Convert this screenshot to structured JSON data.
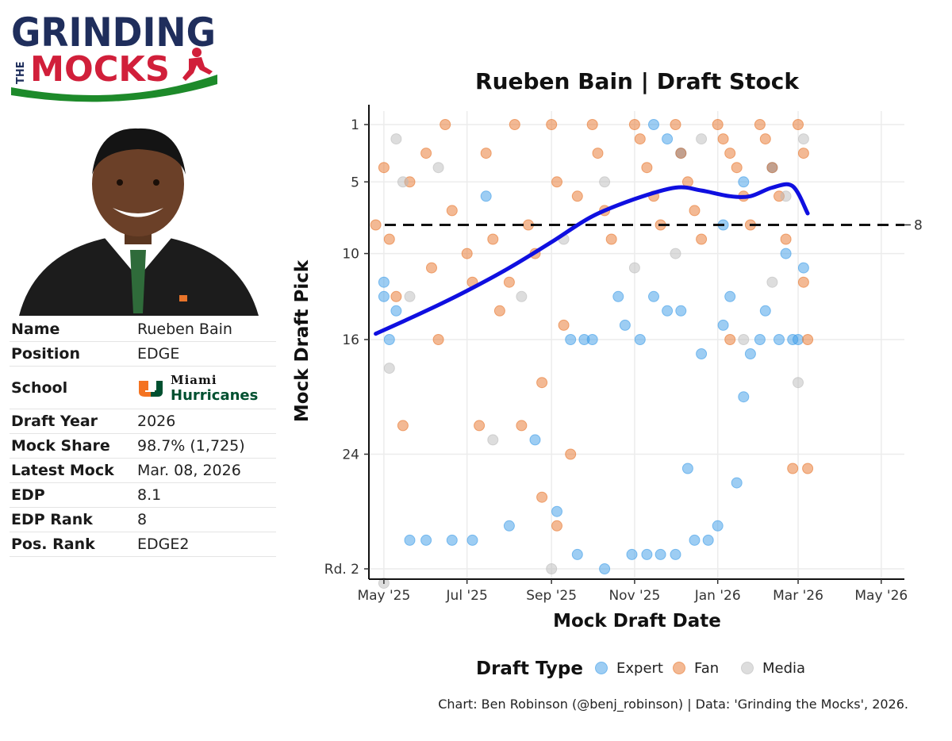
{
  "logo": {
    "line1": "GRINDING",
    "line2": "THE",
    "line3": "MOCKS"
  },
  "profile": {
    "rows": [
      {
        "key": "Name",
        "value": "Rueben Bain"
      },
      {
        "key": "Position",
        "value": "EDGE"
      },
      {
        "key": "School",
        "value": ""
      },
      {
        "key": "Draft Year",
        "value": "2026"
      },
      {
        "key": "Mock Share",
        "value": "98.7% (1,725)"
      },
      {
        "key": "Latest Mock",
        "value": "Mar. 08, 2026"
      },
      {
        "key": "EDP",
        "value": "8.1"
      },
      {
        "key": "EDP Rank",
        "value": "8"
      },
      {
        "key": "Pos. Rank",
        "value": "EDGE2"
      }
    ],
    "school_logo_top": "Miami",
    "school_logo_bottom": "Hurricanes"
  },
  "colors": {
    "expert": "#3b9be8",
    "fan": "#e8742a",
    "media": "#bcbcbc",
    "trend": "#0f0fe0",
    "navy": "#1f2e5c",
    "red": "#d11f3a",
    "green": "#1d8a2a"
  },
  "chart_data": {
    "type": "scatter",
    "title": "Rueben Bain | Draft Stock",
    "xlabel": "Mock Draft Date",
    "ylabel": "Mock Draft Pick",
    "x_ticks": [
      "May '25",
      "Jul '25",
      "Sep '25",
      "Nov '25",
      "Jan '26",
      "Mar '26",
      "May '26"
    ],
    "y_ticks": [
      {
        "value": 1,
        "label": "1"
      },
      {
        "value": 5,
        "label": "5"
      },
      {
        "value": 10,
        "label": "10"
      },
      {
        "value": 16,
        "label": "16"
      },
      {
        "value": 24,
        "label": "24"
      },
      {
        "value": 32,
        "label": "Rd. 2"
      }
    ],
    "reference_line": {
      "value": 8,
      "label": "8"
    },
    "legend": {
      "title": "Draft Type",
      "entries": [
        "Expert",
        "Fan",
        "Media"
      ]
    },
    "caption": "Chart: Ben Robinson (@benj_robinson) | Data: 'Grinding the Mocks', 2026.",
    "trend": [
      {
        "x": "Apr 25 '25",
        "y": 15.6
      },
      {
        "x": "Jun 01 '25",
        "y": 14.0
      },
      {
        "x": "Jul 01 '25",
        "y": 12.6
      },
      {
        "x": "Aug 01 '25",
        "y": 11.0
      },
      {
        "x": "Sep 01 '25",
        "y": 9.2
      },
      {
        "x": "Oct 01 '25",
        "y": 7.4
      },
      {
        "x": "Nov 01 '25",
        "y": 6.2
      },
      {
        "x": "Dec 01 '25",
        "y": 5.4
      },
      {
        "x": "Dec 20 '25",
        "y": 5.6
      },
      {
        "x": "Jan 10 '26",
        "y": 6.0
      },
      {
        "x": "Jan 25 '26",
        "y": 6.0
      },
      {
        "x": "Feb 10 '26",
        "y": 5.4
      },
      {
        "x": "Feb 25 '26",
        "y": 5.3
      },
      {
        "x": "Mar 08 '26",
        "y": 7.2
      }
    ],
    "series": [
      {
        "name": "Expert",
        "points": [
          [
            "May 01 '25",
            12
          ],
          [
            "May 01 '25",
            13
          ],
          [
            "May 05 '25",
            16
          ],
          [
            "May 10 '25",
            14
          ],
          [
            "May 20 '25",
            30
          ],
          [
            "Jun 01 '25",
            30
          ],
          [
            "Jun 20 '25",
            30
          ],
          [
            "Jul 05 '25",
            30
          ],
          [
            "Jul 15 '25",
            6
          ],
          [
            "Aug 01 '25",
            29
          ],
          [
            "Aug 20 '25",
            23
          ],
          [
            "Sep 05 '25",
            28
          ],
          [
            "Sep 15 '25",
            16
          ],
          [
            "Sep 20 '25",
            31
          ],
          [
            "Sep 25 '25",
            16
          ],
          [
            "Oct 01 '25",
            16
          ],
          [
            "Oct 10 '25",
            32
          ],
          [
            "Oct 20 '25",
            13
          ],
          [
            "Oct 25 '25",
            15
          ],
          [
            "Oct 30 '25",
            31
          ],
          [
            "Nov 05 '25",
            16
          ],
          [
            "Nov 10 '25",
            31
          ],
          [
            "Nov 15 '25",
            13
          ],
          [
            "Nov 20 '25",
            31
          ],
          [
            "Nov 25 '25",
            14
          ],
          [
            "Dec 01 '25",
            31
          ],
          [
            "Dec 05 '25",
            14
          ],
          [
            "Dec 10 '25",
            25
          ],
          [
            "Dec 15 '25",
            30
          ],
          [
            "Dec 20 '25",
            17
          ],
          [
            "Dec 25 '25",
            30
          ],
          [
            "Jan 01 '26",
            29
          ],
          [
            "Jan 05 '26",
            15
          ],
          [
            "Jan 10 '26",
            13
          ],
          [
            "Jan 15 '26",
            26
          ],
          [
            "Jan 20 '26",
            20
          ],
          [
            "Jan 25 '26",
            17
          ],
          [
            "Feb 01 '26",
            16
          ],
          [
            "Feb 05 '26",
            14
          ],
          [
            "Feb 15 '26",
            16
          ],
          [
            "Feb 25 '26",
            16
          ],
          [
            "Mar 01 '26",
            16
          ],
          [
            "Nov 15 '25",
            1
          ],
          [
            "Nov 25 '25",
            2
          ],
          [
            "Dec 05 '25",
            3
          ],
          [
            "Jan 20 '26",
            5
          ],
          [
            "Feb 10 '26",
            4
          ],
          [
            "Jan 05 '26",
            8
          ],
          [
            "Feb 20 '26",
            10
          ],
          [
            "Mar 05 '26",
            11
          ]
        ]
      },
      {
        "name": "Fan",
        "points": [
          [
            "Apr 25 '25",
            8
          ],
          [
            "May 01 '25",
            4
          ],
          [
            "May 05 '25",
            9
          ],
          [
            "May 10 '25",
            13
          ],
          [
            "May 15 '25",
            22
          ],
          [
            "May 20 '25",
            5
          ],
          [
            "Jun 01 '25",
            3
          ],
          [
            "Jun 05 '25",
            11
          ],
          [
            "Jun 10 '25",
            16
          ],
          [
            "Jun 15 '25",
            1
          ],
          [
            "Jun 20 '25",
            7
          ],
          [
            "Jul 01 '25",
            10
          ],
          [
            "Jul 05 '25",
            12
          ],
          [
            "Jul 10 '25",
            22
          ],
          [
            "Jul 15 '25",
            3
          ],
          [
            "Jul 20 '25",
            9
          ],
          [
            "Jul 25 '25",
            14
          ],
          [
            "Aug 01 '25",
            12
          ],
          [
            "Aug 05 '25",
            1
          ],
          [
            "Aug 10 '25",
            22
          ],
          [
            "Aug 15 '25",
            8
          ],
          [
            "Aug 20 '25",
            10
          ],
          [
            "Aug 25 '25",
            19
          ],
          [
            "Sep 01 '25",
            1
          ],
          [
            "Sep 05 '25",
            5
          ],
          [
            "Sep 10 '25",
            15
          ],
          [
            "Sep 15 '25",
            24
          ],
          [
            "Sep 20 '25",
            6
          ],
          [
            "Oct 01 '25",
            1
          ],
          [
            "Oct 05 '25",
            3
          ],
          [
            "Oct 10 '25",
            7
          ],
          [
            "Oct 15 '25",
            9
          ],
          [
            "Nov 01 '25",
            1
          ],
          [
            "Nov 05 '25",
            2
          ],
          [
            "Nov 10 '25",
            4
          ],
          [
            "Nov 15 '25",
            6
          ],
          [
            "Nov 20 '25",
            8
          ],
          [
            "Dec 01 '25",
            1
          ],
          [
            "Dec 05 '25",
            3
          ],
          [
            "Dec 10 '25",
            5
          ],
          [
            "Dec 15 '25",
            7
          ],
          [
            "Dec 20 '25",
            9
          ],
          [
            "Jan 01 '26",
            1
          ],
          [
            "Jan 05 '26",
            2
          ],
          [
            "Jan 10 '26",
            3
          ],
          [
            "Jan 15 '26",
            4
          ],
          [
            "Jan 20 '26",
            6
          ],
          [
            "Jan 25 '26",
            8
          ],
          [
            "Feb 01 '26",
            1
          ],
          [
            "Feb 05 '26",
            2
          ],
          [
            "Feb 10 '26",
            4
          ],
          [
            "Feb 15 '26",
            6
          ],
          [
            "Feb 20 '26",
            9
          ],
          [
            "Feb 25 '26",
            25
          ],
          [
            "Mar 01 '26",
            1
          ],
          [
            "Mar 05 '26",
            3
          ],
          [
            "Mar 05 '26",
            12
          ],
          [
            "Mar 08 '26",
            25
          ],
          [
            "Mar 08 '26",
            16
          ],
          [
            "Sep 05 '25",
            29
          ],
          [
            "Aug 25 '25",
            27
          ],
          [
            "Jan 10 '26",
            16
          ]
        ]
      },
      {
        "name": "Media",
        "points": [
          [
            "May 01 '25",
            33
          ],
          [
            "May 05 '25",
            18
          ],
          [
            "May 10 '25",
            2
          ],
          [
            "May 15 '25",
            5
          ],
          [
            "May 20 '25",
            13
          ],
          [
            "Jun 10 '25",
            4
          ],
          [
            "Jul 20 '25",
            23
          ],
          [
            "Aug 10 '25",
            13
          ],
          [
            "Sep 01 '25",
            32
          ],
          [
            "Sep 10 '25",
            9
          ],
          [
            "Oct 10 '25",
            5
          ],
          [
            "Nov 01 '25",
            11
          ],
          [
            "Dec 01 '25",
            10
          ],
          [
            "Dec 20 '25",
            2
          ],
          [
            "Jan 20 '26",
            16
          ],
          [
            "Feb 10 '26",
            12
          ],
          [
            "Mar 01 '26",
            19
          ],
          [
            "Mar 05 '26",
            2
          ],
          [
            "Feb 20 '26",
            6
          ]
        ]
      }
    ]
  }
}
